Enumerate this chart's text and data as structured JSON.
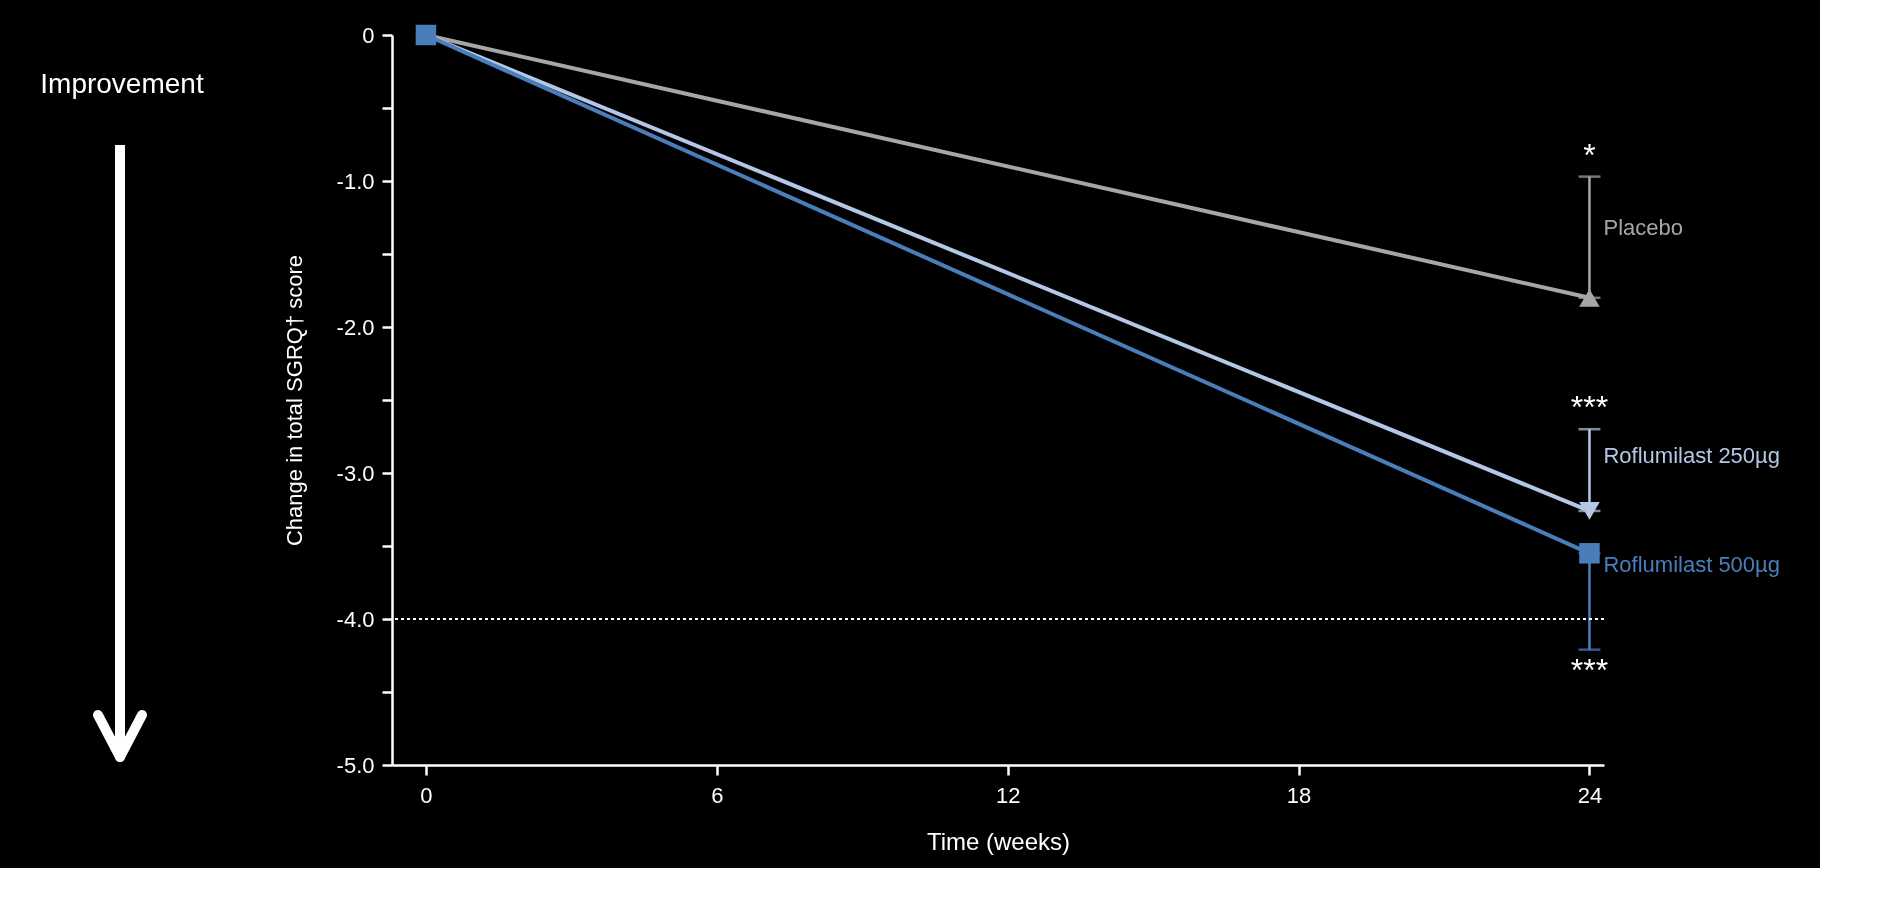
{
  "chart_data": {
    "type": "line",
    "xlabel": "Time (weeks)",
    "ylabel": "Change in total SGRQ† score",
    "x": [
      0,
      24
    ],
    "series": [
      {
        "name": "Placebo",
        "color": "#a6a6a6",
        "marker": "triangle",
        "values": [
          0,
          -1.8
        ],
        "errors": [
          null,
          [
            -1.8,
            -0.97
          ]
        ]
      },
      {
        "name": "Roflumilast 250µg",
        "color": "#b4c7e7",
        "marker": "triangle-down",
        "values": [
          0,
          -3.26
        ],
        "errors": [
          null,
          [
            -3.26,
            -2.7
          ]
        ]
      },
      {
        "name": "Roflumilast 500µg",
        "color": "#4a7ebb",
        "marker": "square",
        "values": [
          0,
          -3.55
        ],
        "errors": [
          null,
          [
            -4.21,
            -3.55
          ]
        ]
      }
    ],
    "xlim": [
      -0.7,
      24.3
    ],
    "ylim": [
      -5,
      0
    ],
    "xticks": [
      0,
      6,
      12,
      18,
      24
    ],
    "yticks": [
      {
        "value": 0,
        "label": "0"
      },
      {
        "value": -0.5,
        "label": null
      },
      {
        "value": -1,
        "label": "-1.0"
      },
      {
        "value": -1.5,
        "label": null
      },
      {
        "value": -2,
        "label": "-2.0"
      },
      {
        "value": -2.5,
        "label": null
      },
      {
        "value": -3,
        "label": "-3.0"
      },
      {
        "value": -3.5,
        "label": null
      },
      {
        "value": -4,
        "label": "-4.0"
      },
      {
        "value": -4.5,
        "label": null
      },
      {
        "value": -5,
        "label": "-5.0"
      }
    ],
    "ref_lines": [
      {
        "axis": "y",
        "value": -4,
        "color": "#ffffff",
        "line_style": "dotted"
      }
    ],
    "annotations": [
      "Improvement",
      {
        "text": "*",
        "y": -0.97
      },
      {
        "text": "***",
        "y": -2.7
      },
      {
        "text": "***",
        "y": -4.21
      }
    ],
    "grid": false,
    "legend": false
  }
}
